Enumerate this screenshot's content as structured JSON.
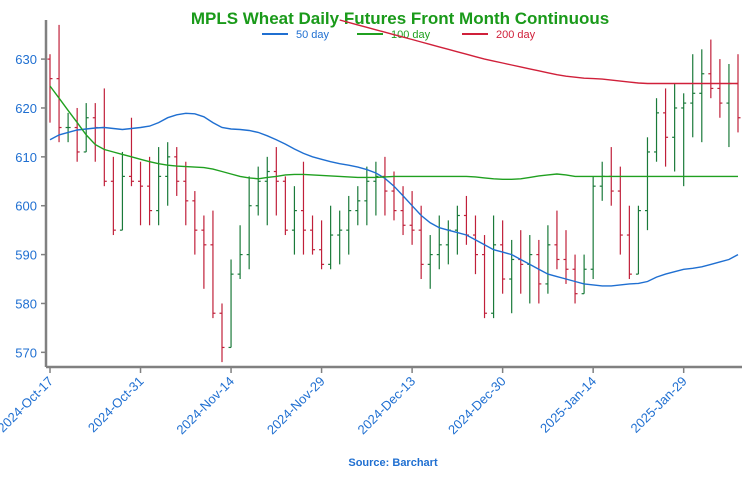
{
  "chart_data": {
    "type": "ohlc",
    "title": "MPLS Wheat Daily Futures Front Month Continuous",
    "source": "Source: Barchart",
    "xlabel": "",
    "ylabel": "",
    "ylim": [
      567,
      638
    ],
    "y_ticks": [
      570,
      580,
      590,
      600,
      610,
      620,
      630
    ],
    "x_ticks": [
      "2024-Oct-17",
      "2024-Oct-31",
      "2024-Nov-14",
      "2024-Nov-29",
      "2024-Dec-13",
      "2024-Dec-30",
      "2025-Jan-14",
      "2025-Jan-29"
    ],
    "x_tick_index": [
      0,
      10,
      20,
      30,
      40,
      50,
      60,
      70
    ],
    "colors": {
      "title": "#1a9a1a",
      "up": "#1a7a3a",
      "down": "#c0203a",
      "ma50": "#1f6fd1",
      "ma100": "#20a020",
      "ma200": "#d0203a",
      "axis": "#808080",
      "ticks": "#1f6fd1",
      "source": "#1f6fd1"
    },
    "legend": [
      {
        "name": "50 day",
        "color": "#1f6fd1"
      },
      {
        "name": "100 day",
        "color": "#20a020"
      },
      {
        "name": "200 day",
        "color": "#d0203a"
      }
    ],
    "series": [
      {
        "name": "50 day",
        "values": [
          613.5,
          614.5,
          615,
          615.5,
          615.7,
          615.9,
          616,
          615.8,
          615.6,
          615.8,
          616,
          616.3,
          617,
          618,
          618.6,
          618.9,
          618.8,
          618.2,
          617,
          616,
          615.7,
          615.6,
          615.4,
          615,
          614.3,
          613.5,
          612.6,
          611.6,
          610.7,
          610,
          609.5,
          609,
          608.6,
          608.3,
          607.9,
          607.4,
          606.7,
          605.6,
          604,
          602,
          600,
          598,
          596.5,
          595.5,
          595,
          594.5,
          594,
          593,
          592,
          591,
          590.5,
          590,
          589,
          588,
          587,
          586,
          585.5,
          585,
          584.5,
          584,
          583.8,
          583.6,
          583.6,
          583.8,
          584,
          584.1,
          584.5,
          585.4,
          586,
          586.5,
          587,
          587.2,
          587.5,
          588,
          588.5,
          589,
          590
        ]
      },
      {
        "name": "100 day",
        "values": [
          624.5,
          622,
          619.5,
          617,
          614.5,
          612.5,
          611.5,
          611,
          610.5,
          610,
          609.5,
          609,
          608.6,
          608.3,
          608.1,
          608,
          607.9,
          607.8,
          607.5,
          607,
          606.5,
          606,
          605.7,
          605.5,
          605.8,
          606,
          606.3,
          606.4,
          606.4,
          606.3,
          606.2,
          606.1,
          606,
          605.9,
          605.8,
          605.8,
          605.8,
          605.9,
          606,
          606,
          606,
          606,
          606,
          606,
          606,
          606,
          606,
          605.9,
          605.7,
          605.5,
          605.4,
          605.4,
          605.5,
          605.8,
          606.1,
          606.3,
          606.5,
          606.3,
          606,
          606,
          606,
          606,
          606,
          606,
          606,
          606,
          606,
          606,
          606,
          606,
          606,
          606,
          606,
          606,
          606,
          606,
          606
        ]
      },
      {
        "name": "200 day",
        "values": [
          null,
          null,
          null,
          null,
          null,
          null,
          null,
          null,
          null,
          null,
          null,
          null,
          null,
          null,
          null,
          null,
          null,
          null,
          null,
          null,
          null,
          null,
          null,
          null,
          null,
          null,
          null,
          null,
          null,
          null,
          null,
          null,
          638,
          637.5,
          637,
          636.5,
          636,
          635.5,
          635,
          634.5,
          634,
          633.5,
          633,
          632.5,
          632,
          631.5,
          631,
          630.5,
          630,
          629.6,
          629.2,
          628.8,
          628.4,
          628,
          627.6,
          627.2,
          626.8,
          626.5,
          626.3,
          626.1,
          626,
          625.9,
          625.7,
          625.5,
          625.3,
          625.1,
          625,
          625,
          625,
          625,
          625,
          625,
          625,
          625,
          625,
          625,
          625
        ]
      }
    ],
    "ohlc": [
      [
        630,
        631,
        617,
        626
      ],
      [
        626,
        637,
        613,
        616
      ],
      [
        616,
        619,
        613,
        616
      ],
      [
        616,
        620,
        609,
        611
      ],
      [
        611,
        621,
        611,
        618
      ],
      [
        618,
        621,
        609,
        616
      ],
      [
        616,
        624,
        604,
        605
      ],
      [
        605,
        610,
        594,
        595
      ],
      [
        595,
        611,
        595,
        606
      ],
      [
        606,
        618,
        604,
        605
      ],
      [
        605,
        609,
        596,
        604
      ],
      [
        604,
        610,
        596,
        599
      ],
      [
        599,
        612,
        596,
        606
      ],
      [
        606,
        613,
        600,
        610
      ],
      [
        610,
        612,
        602,
        605
      ],
      [
        605,
        609,
        596,
        601
      ],
      [
        601,
        603,
        590,
        595
      ],
      [
        595,
        598,
        583,
        592
      ],
      [
        592,
        599,
        577,
        578
      ],
      [
        578,
        580,
        568,
        571
      ],
      [
        571,
        589,
        571,
        586
      ],
      [
        586,
        596,
        585,
        590
      ],
      [
        590,
        606,
        587,
        600
      ],
      [
        600,
        608,
        598,
        605
      ],
      [
        605,
        610,
        596,
        607
      ],
      [
        607,
        612,
        598,
        605
      ],
      [
        605,
        606,
        594,
        595
      ],
      [
        595,
        604,
        590,
        599
      ],
      [
        599,
        609,
        590,
        595
      ],
      [
        595,
        598,
        590,
        591
      ],
      [
        591,
        597,
        587,
        588
      ],
      [
        588,
        600,
        587,
        594
      ],
      [
        594,
        599,
        588,
        595
      ],
      [
        595,
        602,
        590,
        599
      ],
      [
        599,
        604,
        596,
        601
      ],
      [
        601,
        608,
        596,
        605
      ],
      [
        605,
        609,
        598,
        606
      ],
      [
        606,
        610,
        598,
        603
      ],
      [
        603,
        607,
        597,
        599
      ],
      [
        599,
        604,
        594,
        596
      ],
      [
        596,
        603,
        592,
        595
      ],
      [
        595,
        600,
        585,
        588
      ],
      [
        588,
        594,
        583,
        590
      ],
      [
        590,
        598,
        587,
        592
      ],
      [
        592,
        597,
        588,
        595
      ],
      [
        595,
        600,
        590,
        598
      ],
      [
        598,
        602,
        592,
        594
      ],
      [
        594,
        598,
        586,
        590
      ],
      [
        590,
        594,
        577,
        578
      ],
      [
        578,
        598,
        577,
        592
      ],
      [
        592,
        597,
        582,
        585
      ],
      [
        585,
        593,
        578,
        589
      ],
      [
        589,
        595,
        582,
        588
      ],
      [
        588,
        594,
        580,
        590
      ],
      [
        590,
        593,
        580,
        584
      ],
      [
        584,
        596,
        582,
        592
      ],
      [
        592,
        599,
        587,
        589
      ],
      [
        589,
        595,
        584,
        587
      ],
      [
        587,
        590,
        580,
        582
      ],
      [
        582,
        590,
        582,
        587
      ],
      [
        587,
        606,
        585,
        604
      ],
      [
        604,
        609,
        601,
        606
      ],
      [
        606,
        612,
        600,
        603
      ],
      [
        603,
        608,
        590,
        594
      ],
      [
        594,
        600,
        585,
        586
      ],
      [
        586,
        600,
        586,
        599
      ],
      [
        599,
        614,
        595,
        611
      ],
      [
        611,
        622,
        609,
        619
      ],
      [
        619,
        624,
        608,
        614
      ],
      [
        614,
        625,
        607,
        620
      ],
      [
        620,
        623,
        604,
        621
      ],
      [
        621,
        631,
        614,
        623
      ],
      [
        623,
        632,
        613,
        627
      ],
      [
        627,
        634,
        622,
        624
      ],
      [
        624,
        630,
        618,
        621
      ],
      [
        621,
        629,
        612,
        625
      ],
      [
        625,
        631,
        615,
        618
      ]
    ]
  }
}
